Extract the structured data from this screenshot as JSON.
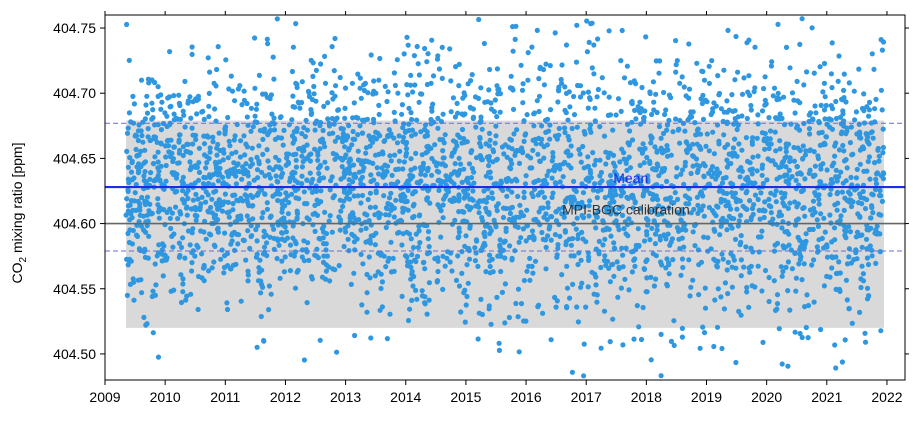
{
  "chart_data": {
    "type": "scatter",
    "title": "",
    "xlabel": "",
    "ylabel": {
      "main": "CO",
      "subscript": "2",
      "rest": " mixing ratio [ppm]"
    },
    "xlim": [
      2009,
      2022.3
    ],
    "ylim": [
      404.48,
      404.76
    ],
    "x_ticks": [
      "2009",
      "2010",
      "2011",
      "2012",
      "2013",
      "2014",
      "2015",
      "2016",
      "2017",
      "2018",
      "2019",
      "2020",
      "2021",
      "2022"
    ],
    "y_ticks": [
      "404.50",
      "404.55",
      "404.60",
      "404.65",
      "404.70",
      "404.75"
    ],
    "grid": false,
    "colors": {
      "points": "#2e97e0",
      "mean_line": "#1a2ee6",
      "std_dashed": "#6a6ad9",
      "calibration_line": "#666666",
      "shaded_band": "#d9d9d9",
      "mean_label": "#1a2ee6",
      "calibration_label": "#333333"
    },
    "series": [
      {
        "points_summary": {
          "x_range": [
            2009.35,
            2021.95
          ],
          "n_points_approx": 3500,
          "center": 404.628,
          "spread_sd": 0.048
        }
      }
    ],
    "reference_lines": {
      "mean": {
        "label": "Mean",
        "y": 404.628
      },
      "mean_plus_sd": {
        "y": 404.677
      },
      "mean_minus_sd": {
        "y": 404.579
      },
      "calibration": {
        "label": "MPI-BGC calibration",
        "y": 404.6
      }
    },
    "shaded_band": {
      "x": [
        2009.35,
        2021.95
      ],
      "y": [
        404.52,
        404.679
      ]
    }
  }
}
